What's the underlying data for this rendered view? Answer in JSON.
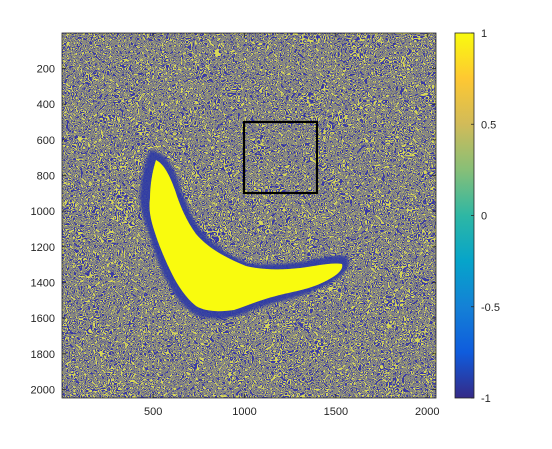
{
  "chart_data": {
    "type": "heatmap",
    "title": "",
    "xlabel": "",
    "ylabel": "",
    "xlim": [
      1,
      2048
    ],
    "ylim": [
      2048,
      1
    ],
    "y_axis_direction": "reversed",
    "x_ticks": [
      500,
      1000,
      1500,
      2000
    ],
    "x_tick_labels": [
      "500",
      "1000",
      "1500",
      "2000"
    ],
    "y_ticks": [
      200,
      400,
      600,
      800,
      1000,
      1200,
      1400,
      1600,
      1800,
      2000
    ],
    "y_tick_labels": [
      "200",
      "400",
      "600",
      "800",
      "1000",
      "1200",
      "1400",
      "1600",
      "1800",
      "2000"
    ],
    "colorbar": {
      "colormap": "parula",
      "range": [
        -1,
        1
      ],
      "ticks": [
        1,
        0.5,
        0,
        -0.5,
        -1
      ],
      "tick_labels": [
        "1",
        "0.5",
        "0",
        "-0.5",
        "-1"
      ],
      "colors": [
        "#352a87",
        "#0f5cdd",
        "#1481d6",
        "#06a4ca",
        "#2eb7a4",
        "#87bf77",
        "#d1bb59",
        "#fec832",
        "#f9fb0e"
      ]
    },
    "annotations": [
      {
        "type": "rectangle",
        "x_range": [
          1000,
          1420
        ],
        "y_range": [
          500,
          900
        ],
        "color": "#000000"
      }
    ],
    "background_pattern": "labyrinthine stripe pattern alternating between -1 and 1",
    "uniform_region": {
      "value": 1,
      "description": "yellow elongated domain",
      "approx_x_range": [
        430,
        1480
      ],
      "approx_y_range": [
        850,
        1600
      ]
    },
    "grid": false
  }
}
